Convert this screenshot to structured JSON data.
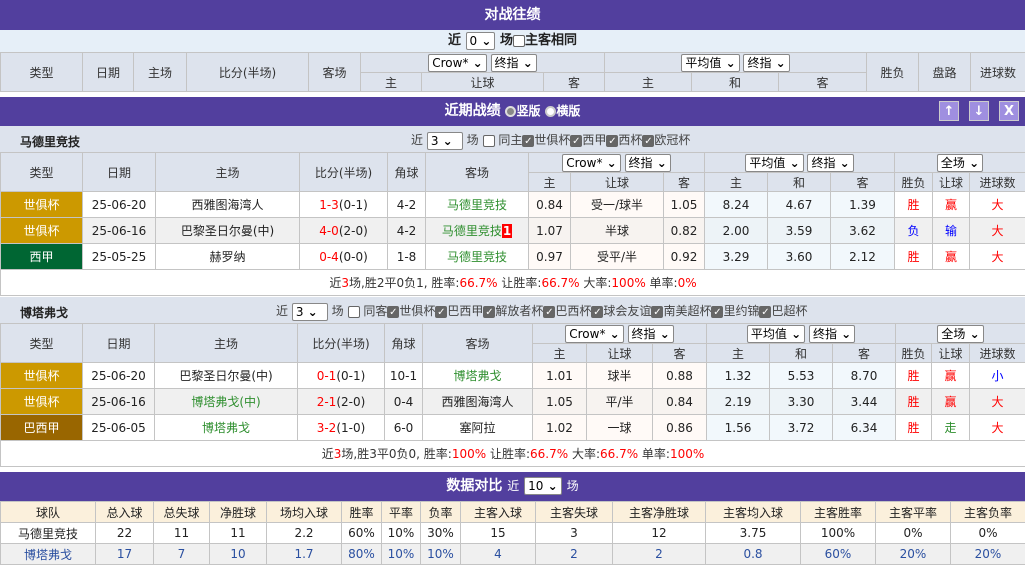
{
  "h2h": {
    "title": "对战往绩",
    "near_label": "近",
    "near_value": "0",
    "unit": "场",
    "same_label": "主客相同",
    "headers": [
      "类型",
      "日期",
      "主场",
      "比分(半场)",
      "客场",
      "胜负",
      "盘路",
      "进球数"
    ],
    "odds_company": "Crow*",
    "odds_type": "终指",
    "avg_label": "平均值",
    "avg_type": "终指",
    "sub_headers": [
      "主",
      "让球",
      "客",
      "主",
      "和",
      "客"
    ]
  },
  "recent": {
    "title": "近期战绩",
    "radio_vertical": "竖版",
    "radio_horizontal": "横版",
    "buttons": [
      "↑",
      "↓",
      "X"
    ]
  },
  "teams": [
    {
      "name": "马德里竞技",
      "near_label": "近",
      "near_value": "3",
      "unit": "场",
      "same_label": "同主",
      "leagues": [
        "世俱杯",
        "西甲",
        "西杯",
        "欧冠杯"
      ],
      "headers": [
        "类型",
        "日期",
        "主场",
        "比分(半场)",
        "角球",
        "客场"
      ],
      "odds_company": "Crow*",
      "odds_type": "终指",
      "avg_label": "平均值",
      "avg_type": "终指",
      "period": "全场",
      "sub_headers": [
        "主",
        "让球",
        "客",
        "主",
        "和",
        "客",
        "胜负",
        "让球",
        "进球数"
      ],
      "rows": [
        {
          "league": "世俱杯",
          "league_color": "#cc9900",
          "date": "25-06-20",
          "home": "西雅图海湾人",
          "home_green": false,
          "score": "1-3",
          "half": "(0-1)",
          "corner": "4-2",
          "away": "马德里竞技",
          "away_green": true,
          "red_card": "",
          "o": [
            "0.84",
            "受一/球半",
            "1.05"
          ],
          "e": [
            "8.24",
            "4.67",
            "1.39"
          ],
          "wl": "胜",
          "wl_color": "#f00",
          "pan": "赢",
          "pan_color": "#f00",
          "ou": "大",
          "ou_color": "#f00"
        },
        {
          "league": "世俱杯",
          "league_color": "#cc9900",
          "date": "25-06-16",
          "home": "巴黎圣日尔曼(中)",
          "home_green": false,
          "score": "4-0",
          "half": "(2-0)",
          "corner": "4-2",
          "away": "马德里竞技",
          "away_green": true,
          "red_card": "1",
          "o": [
            "1.07",
            "半球",
            "0.82"
          ],
          "e": [
            "2.00",
            "3.59",
            "3.62"
          ],
          "wl": "负",
          "wl_color": "#0000ff",
          "pan": "输",
          "pan_color": "#0000ff",
          "ou": "大",
          "ou_color": "#f00"
        },
        {
          "league": "西甲",
          "league_color": "#006633",
          "date": "25-05-25",
          "home": "赫罗纳",
          "home_green": false,
          "score": "0-4",
          "half": "(0-0)",
          "corner": "1-8",
          "away": "马德里竞技",
          "away_green": true,
          "red_card": "",
          "o": [
            "0.97",
            "受平/半",
            "0.92"
          ],
          "e": [
            "3.29",
            "3.60",
            "2.12"
          ],
          "wl": "胜",
          "wl_color": "#f00",
          "pan": "赢",
          "pan_color": "#f00",
          "ou": "大",
          "ou_color": "#f00"
        }
      ],
      "summary": {
        "near": "近",
        "n": "3",
        "mid": "场,胜2平0负1, 胜率:",
        "win": "66.7%",
        "l2": " 让胜率:",
        "rq": "66.7%",
        "l3": " 大率:",
        "big": "100%",
        "l4": " 单率:",
        "odd": "0%"
      }
    },
    {
      "name": "博塔弗戈",
      "near_label": "近",
      "near_value": "3",
      "unit": "场",
      "same_label": "同客",
      "leagues": [
        "世俱杯",
        "巴西甲",
        "解放者杯",
        "巴西杯",
        "球会友谊",
        "南美超杯",
        "里约锦",
        "巴超杯"
      ],
      "headers": [
        "类型",
        "日期",
        "主场",
        "比分(半场)",
        "角球",
        "客场"
      ],
      "odds_company": "Crow*",
      "odds_type": "终指",
      "avg_label": "平均值",
      "avg_type": "终指",
      "period": "全场",
      "sub_headers": [
        "主",
        "让球",
        "客",
        "主",
        "和",
        "客",
        "胜负",
        "让球",
        "进球数"
      ],
      "rows": [
        {
          "league": "世俱杯",
          "league_color": "#cc9900",
          "date": "25-06-20",
          "home": "巴黎圣日尔曼(中)",
          "home_green": false,
          "score": "0-1",
          "half": "(0-1)",
          "corner": "10-1",
          "away": "博塔弗戈",
          "away_green": true,
          "red_card": "",
          "o": [
            "1.01",
            "球半",
            "0.88"
          ],
          "e": [
            "1.32",
            "5.53",
            "8.70"
          ],
          "wl": "胜",
          "wl_color": "#f00",
          "pan": "赢",
          "pan_color": "#f00",
          "ou": "小",
          "ou_color": "#0000ff"
        },
        {
          "league": "世俱杯",
          "league_color": "#cc9900",
          "date": "25-06-16",
          "home": "博塔弗戈(中)",
          "home_green": true,
          "score": "2-1",
          "half": "(2-0)",
          "corner": "0-4",
          "away": "西雅图海湾人",
          "away_green": false,
          "red_card": "",
          "o": [
            "1.05",
            "平/半",
            "0.84"
          ],
          "e": [
            "2.19",
            "3.30",
            "3.44"
          ],
          "wl": "胜",
          "wl_color": "#f00",
          "pan": "赢",
          "pan_color": "#f00",
          "ou": "大",
          "ou_color": "#f00"
        },
        {
          "league": "巴西甲",
          "league_color": "#996600",
          "date": "25-06-05",
          "home": "博塔弗戈",
          "home_green": true,
          "score": "3-2",
          "half": "(1-0)",
          "corner": "6-0",
          "away": "塞阿拉",
          "away_green": false,
          "red_card": "",
          "o": [
            "1.02",
            "一球",
            "0.86"
          ],
          "e": [
            "1.56",
            "3.72",
            "6.34"
          ],
          "wl": "胜",
          "wl_color": "#f00",
          "pan": "走",
          "pan_color": "#2f8f2f",
          "ou": "大",
          "ou_color": "#f00"
        }
      ],
      "summary": {
        "near": "近",
        "n": "3",
        "mid": "场,胜3平0负0, 胜率:",
        "win": "100%",
        "l2": " 让胜率:",
        "rq": "66.7%",
        "l3": " 大率:",
        "big": "66.7%",
        "l4": " 单率:",
        "odd": "100%"
      }
    }
  ],
  "compare": {
    "title": "数据对比",
    "near_label": "近",
    "near_value": "10",
    "unit": "场",
    "headers": [
      "球队",
      "总入球",
      "总失球",
      "净胜球",
      "场均入球",
      "胜率",
      "平率",
      "负率",
      "主客入球",
      "主客失球",
      "主客净胜球",
      "主客均入球",
      "主客胜率",
      "主客平率",
      "主客负率"
    ],
    "rows": [
      [
        "马德里竞技",
        "22",
        "11",
        "11",
        "2.2",
        "60%",
        "10%",
        "30%",
        "15",
        "3",
        "12",
        "3.75",
        "100%",
        "0%",
        "0%"
      ],
      [
        "博塔弗戈",
        "17",
        "7",
        "10",
        "1.7",
        "80%",
        "10%",
        "10%",
        "4",
        "2",
        "2",
        "0.8",
        "60%",
        "20%",
        "20%"
      ]
    ]
  },
  "colors": {
    "header_bar": "#523f9e",
    "win": "#ff0000",
    "loss": "#0000ff",
    "team_green": "#2f8f2f"
  }
}
